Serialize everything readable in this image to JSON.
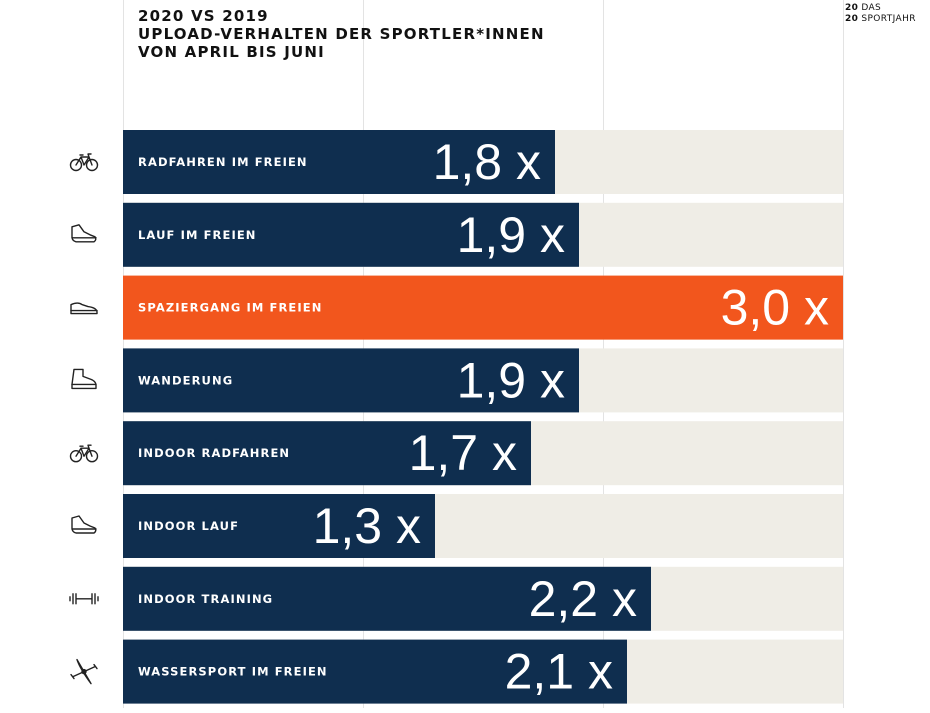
{
  "header": {
    "title_lines": [
      "2020 VS 2019",
      "UPLOAD-VERHALTEN DER SPORTLER*INNEN",
      "VON APRIL BIS JUNI"
    ]
  },
  "brand": {
    "logo_lines": [
      {
        "num": "20",
        "text": "DAS"
      },
      {
        "num": "20",
        "text": "SPORTJAHR"
      }
    ]
  },
  "colors": {
    "bar": "#0f2e4f",
    "highlight": "#f2561d",
    "track": "#efede6",
    "gridline": "#e3e3e3",
    "icon": "#222222",
    "label": "#ffffff"
  },
  "chart_data": {
    "type": "bar",
    "orientation": "horizontal",
    "xlim": [
      0,
      3.0
    ],
    "grid": true,
    "categories": [
      "RADFAHREN IM FREIEN",
      "LAUF IM FREIEN",
      "SPAZIERGANG IM FREIEN",
      "WANDERUNG",
      "INDOOR RADFAHREN",
      "INDOOR LAUF",
      "INDOOR TRAINING",
      "WASSERSPORT IM FREIEN"
    ],
    "values": [
      1.8,
      1.9,
      3.0,
      1.9,
      1.7,
      1.3,
      2.2,
      2.1
    ],
    "value_labels": [
      "1,8 x",
      "1,9 x",
      "3,0 x",
      "1,9 x",
      "1,7 x",
      "1,3 x",
      "2,2 x",
      "2,1 x"
    ],
    "icons": [
      "bicycle-icon",
      "running-shoe-icon",
      "sneaker-icon",
      "hiking-boot-icon",
      "bicycle-icon",
      "running-shoe-icon",
      "dumbbell-icon",
      "kayak-icon"
    ],
    "highlight_index": 2
  }
}
